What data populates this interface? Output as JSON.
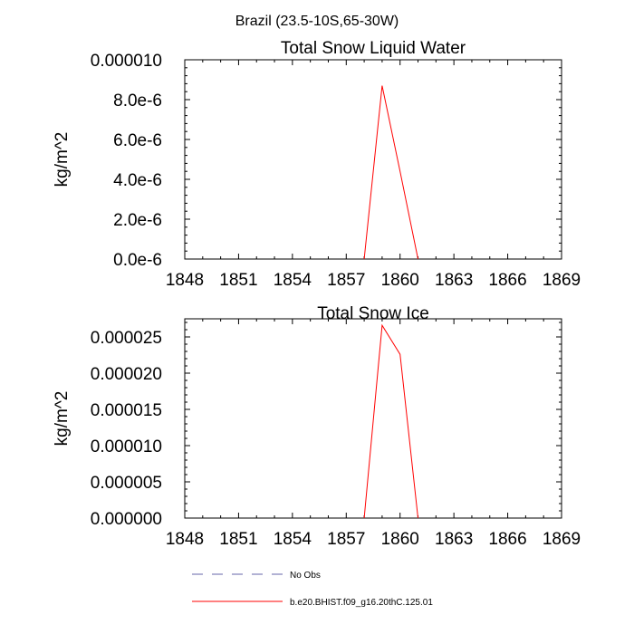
{
  "figure": {
    "title": "Brazil (23.5-10S,65-30W)"
  },
  "chart_data": [
    {
      "type": "line",
      "title": "Total Snow Liquid Water",
      "ylabel": "kg/m^2",
      "xlabel": "",
      "xlim": [
        1848,
        1869
      ],
      "ylim": [
        0,
        1e-05
      ],
      "x_ticks": [
        1848,
        1851,
        1854,
        1857,
        1860,
        1863,
        1866,
        1869
      ],
      "y_ticks": [
        0,
        2e-06,
        4e-06,
        6e-06,
        8e-06,
        1e-05
      ],
      "y_tick_labels": [
        "0.0e-6",
        "2.0e-6",
        "4.0e-6",
        "6.0e-6",
        "8.0e-6",
        "0.000010"
      ],
      "grid": false,
      "series": [
        {
          "name": "b.e20.BHIST.f09_g16.20thC.125.01",
          "color": "#ff0000",
          "x": [
            1858,
            1859,
            1860,
            1861
          ],
          "y": [
            0,
            8.7e-06,
            4.4e-06,
            0
          ]
        }
      ]
    },
    {
      "type": "line",
      "title": "Total Snow Ice",
      "ylabel": "kg/m^2",
      "xlabel": "",
      "xlim": [
        1848,
        1869
      ],
      "ylim": [
        0,
        2.75e-05
      ],
      "x_ticks": [
        1848,
        1851,
        1854,
        1857,
        1860,
        1863,
        1866,
        1869
      ],
      "y_ticks": [
        0,
        5e-06,
        1e-05,
        1.5e-05,
        2e-05,
        2.5e-05
      ],
      "y_tick_labels": [
        "0.000000",
        "0.000005",
        "0.000010",
        "0.000015",
        "0.000020",
        "0.000025"
      ],
      "grid": false,
      "series": [
        {
          "name": "b.e20.BHIST.f09_g16.20thC.125.01",
          "color": "#ff0000",
          "x": [
            1858,
            1859,
            1860,
            1861
          ],
          "y": [
            0,
            2.66e-05,
            2.26e-05,
            0
          ]
        }
      ]
    }
  ],
  "legend": {
    "placement": "bottom",
    "entries": [
      {
        "label": "No Obs",
        "color": "#6666aa",
        "dashed": true
      },
      {
        "label": "b.e20.BHIST.f09_g16.20thC.125.01",
        "color": "#ff0000",
        "dashed": false
      }
    ]
  }
}
